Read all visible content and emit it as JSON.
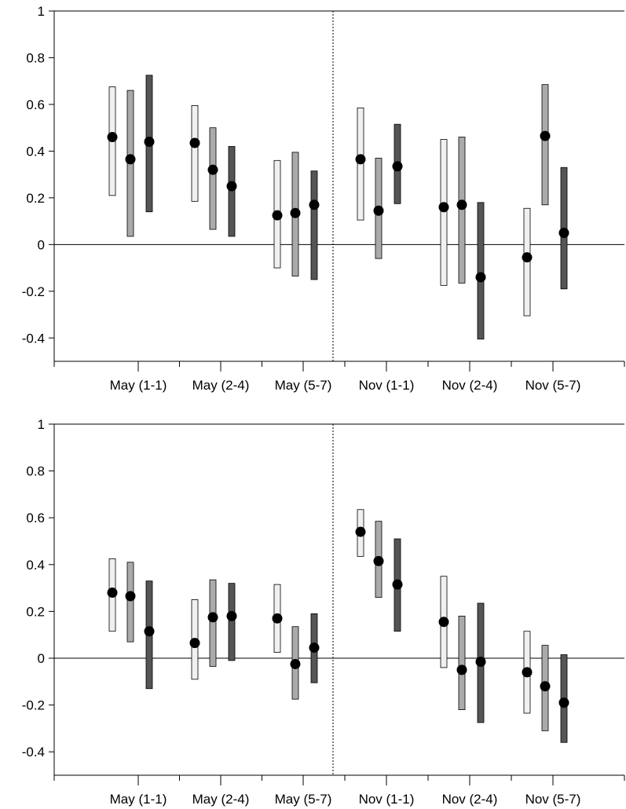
{
  "chart_data": [
    {
      "type": "interval",
      "categories": [
        "May (1-1)",
        "May (2-4)",
        "May (5-7)",
        "Nov (1-1)",
        "Nov (2-4)",
        "Nov (5-7)"
      ],
      "ylim": [
        -0.5,
        1
      ],
      "yticks": [
        -0.4,
        -0.2,
        0,
        0.2,
        0.4,
        0.6,
        0.8,
        1
      ],
      "ytick_labels": [
        "-0.4",
        "-0.2",
        "0",
        "0.2",
        "0.4",
        "0.6",
        "0.8",
        "1"
      ],
      "reference_line_y": 0,
      "divider_after_category_index": 2,
      "series": [
        {
          "color": "#f0f0f0",
          "mean": [
            0.46,
            0.435,
            0.125,
            0.365,
            0.16,
            -0.055
          ],
          "low": [
            0.21,
            0.185,
            -0.1,
            0.105,
            -0.175,
            -0.305
          ],
          "high": [
            0.675,
            0.595,
            0.36,
            0.585,
            0.45,
            0.155
          ]
        },
        {
          "color": "#aaaaaa",
          "mean": [
            0.365,
            0.32,
            0.135,
            0.145,
            0.17,
            0.465
          ],
          "low": [
            0.035,
            0.065,
            -0.135,
            -0.06,
            -0.165,
            0.17
          ],
          "high": [
            0.66,
            0.5,
            0.395,
            0.37,
            0.46,
            0.685
          ]
        },
        {
          "color": "#555555",
          "mean": [
            0.44,
            0.25,
            0.17,
            0.335,
            -0.14,
            0.05
          ],
          "low": [
            0.14,
            0.035,
            -0.15,
            0.175,
            -0.405,
            -0.19
          ],
          "high": [
            0.725,
            0.42,
            0.315,
            0.515,
            0.18,
            0.33
          ]
        }
      ]
    },
    {
      "type": "interval",
      "categories": [
        "May (1-1)",
        "May (2-4)",
        "May (5-7)",
        "Nov (1-1)",
        "Nov (2-4)",
        "Nov (5-7)"
      ],
      "ylim": [
        -0.5,
        1
      ],
      "yticks": [
        -0.4,
        -0.2,
        0,
        0.2,
        0.4,
        0.6,
        0.8,
        1
      ],
      "ytick_labels": [
        "-0.4",
        "-0.2",
        "0",
        "0.2",
        "0.4",
        "0.6",
        "0.8",
        "1"
      ],
      "reference_line_y": 0,
      "divider_after_category_index": 2,
      "series": [
        {
          "color": "#f0f0f0",
          "mean": [
            0.28,
            0.065,
            0.17,
            0.54,
            0.155,
            -0.06
          ],
          "low": [
            0.115,
            -0.09,
            0.025,
            0.435,
            -0.04,
            -0.235
          ],
          "high": [
            0.425,
            0.25,
            0.315,
            0.635,
            0.35,
            0.115
          ]
        },
        {
          "color": "#aaaaaa",
          "mean": [
            0.265,
            0.175,
            -0.025,
            0.415,
            -0.05,
            -0.12
          ],
          "low": [
            0.07,
            -0.035,
            -0.175,
            0.26,
            -0.22,
            -0.31
          ],
          "high": [
            0.41,
            0.335,
            0.135,
            0.585,
            0.18,
            0.055
          ]
        },
        {
          "color": "#555555",
          "mean": [
            0.115,
            0.18,
            0.045,
            0.315,
            -0.015,
            -0.19
          ],
          "low": [
            -0.13,
            -0.01,
            -0.105,
            0.115,
            -0.275,
            -0.36
          ],
          "high": [
            0.33,
            0.32,
            0.19,
            0.51,
            0.235,
            0.015
          ]
        }
      ]
    }
  ]
}
